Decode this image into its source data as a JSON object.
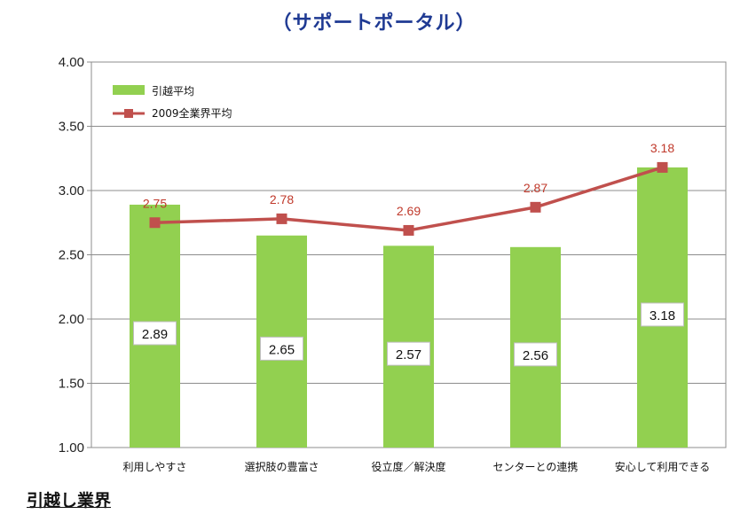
{
  "title": "（サポートポータル）",
  "footer_heading": "引越し業界",
  "chart_data": {
    "type": "bar",
    "categories": [
      "利用しやすさ",
      "選択肢の豊富さ",
      "役立度／解決度",
      "センターとの連携",
      "安心して利用できる"
    ],
    "series": [
      {
        "name": "引越平均",
        "type": "bar",
        "color": "#92d050",
        "values": [
          2.89,
          2.65,
          2.57,
          2.56,
          3.18
        ]
      },
      {
        "name": "2009全業界平均",
        "type": "line",
        "color": "#c0504d",
        "values": [
          2.75,
          2.78,
          2.69,
          2.87,
          3.18
        ]
      }
    ],
    "yticks": [
      "4.00",
      "3.50",
      "3.00",
      "2.50",
      "2.00",
      "1.50",
      "1.00"
    ],
    "ylim": [
      1.0,
      4.0
    ],
    "grid": true,
    "legend_position": "top-left"
  }
}
